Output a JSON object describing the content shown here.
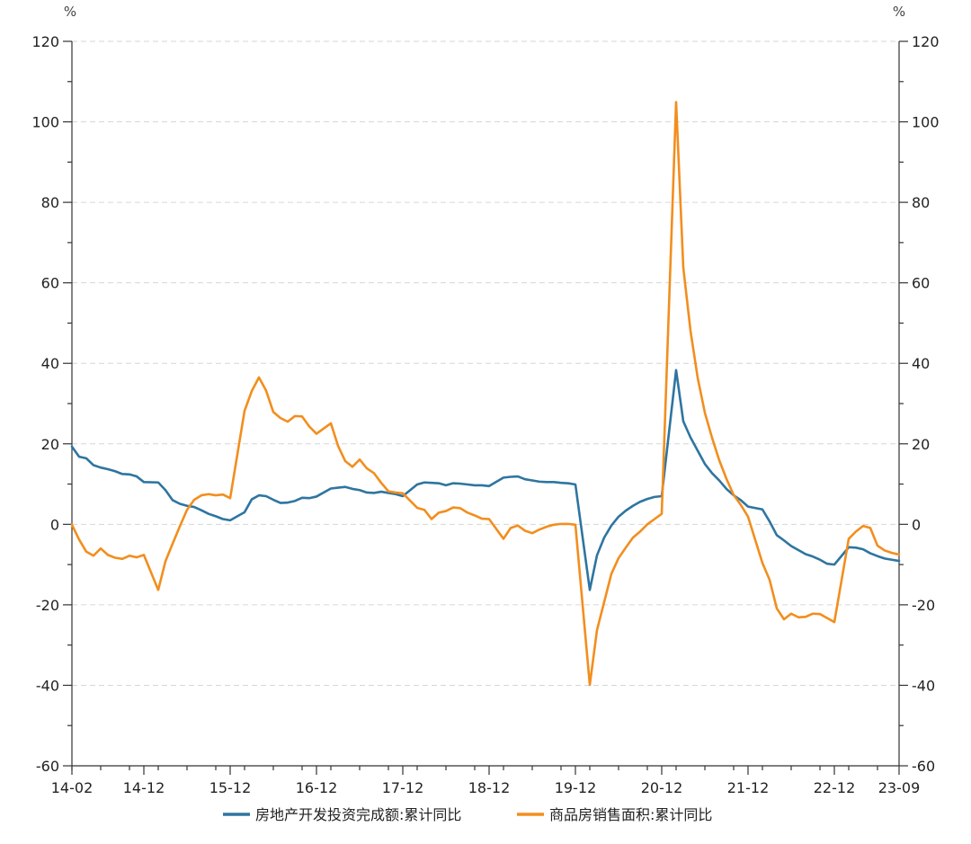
{
  "chart_data": {
    "type": "line",
    "title": "",
    "xlabel": "",
    "ylabel_left": "%",
    "ylabel_right": "%",
    "ylim": [
      -60,
      120
    ],
    "yticks": [
      -60,
      -40,
      -20,
      0,
      20,
      40,
      60,
      80,
      100,
      120
    ],
    "xlim": [
      "2014-02",
      "2023-09"
    ],
    "xticks": [
      "14-02",
      "14-12",
      "15-12",
      "16-12",
      "17-12",
      "18-12",
      "19-12",
      "20-12",
      "21-12",
      "22-12",
      "23-09"
    ],
    "grid": true,
    "legend_position": "bottom",
    "x": [
      "2014-02",
      "2014-03",
      "2014-04",
      "2014-05",
      "2014-06",
      "2014-07",
      "2014-08",
      "2014-09",
      "2014-10",
      "2014-11",
      "2014-12",
      "2015-02",
      "2015-03",
      "2015-04",
      "2015-05",
      "2015-06",
      "2015-07",
      "2015-08",
      "2015-09",
      "2015-10",
      "2015-11",
      "2015-12",
      "2016-02",
      "2016-03",
      "2016-04",
      "2016-05",
      "2016-06",
      "2016-07",
      "2016-08",
      "2016-09",
      "2016-10",
      "2016-11",
      "2016-12",
      "2017-02",
      "2017-03",
      "2017-04",
      "2017-05",
      "2017-06",
      "2017-07",
      "2017-08",
      "2017-09",
      "2017-10",
      "2017-11",
      "2017-12",
      "2018-02",
      "2018-03",
      "2018-04",
      "2018-05",
      "2018-06",
      "2018-07",
      "2018-08",
      "2018-09",
      "2018-10",
      "2018-11",
      "2018-12",
      "2019-02",
      "2019-03",
      "2019-04",
      "2019-05",
      "2019-06",
      "2019-07",
      "2019-08",
      "2019-09",
      "2019-10",
      "2019-11",
      "2019-12",
      "2020-02",
      "2020-03",
      "2020-04",
      "2020-05",
      "2020-06",
      "2020-07",
      "2020-08",
      "2020-09",
      "2020-10",
      "2020-11",
      "2020-12",
      "2021-02",
      "2021-03",
      "2021-04",
      "2021-05",
      "2021-06",
      "2021-07",
      "2021-08",
      "2021-09",
      "2021-10",
      "2021-11",
      "2021-12",
      "2022-02",
      "2022-03",
      "2022-04",
      "2022-05",
      "2022-06",
      "2022-07",
      "2022-08",
      "2022-09",
      "2022-10",
      "2022-11",
      "2022-12",
      "2023-02",
      "2023-03",
      "2023-04",
      "2023-05",
      "2023-06",
      "2023-07",
      "2023-08",
      "2023-09"
    ],
    "series": [
      {
        "name": "房地产开发投资完成额:累计同比",
        "color": "#2e75a0",
        "values": [
          19.3,
          16.8,
          16.4,
          14.7,
          14.1,
          13.7,
          13.2,
          12.5,
          12.4,
          11.9,
          10.5,
          10.4,
          8.5,
          6.0,
          5.1,
          4.6,
          4.3,
          3.5,
          2.6,
          2.0,
          1.3,
          1.0,
          3.0,
          6.2,
          7.2,
          7.0,
          6.1,
          5.3,
          5.4,
          5.8,
          6.6,
          6.5,
          6.9,
          8.9,
          9.1,
          9.3,
          8.8,
          8.5,
          7.9,
          7.8,
          8.1,
          7.8,
          7.5,
          7.0,
          9.9,
          10.4,
          10.3,
          10.2,
          9.7,
          10.2,
          10.1,
          9.9,
          9.7,
          9.7,
          9.5,
          11.6,
          11.8,
          11.9,
          11.2,
          10.9,
          10.6,
          10.5,
          10.5,
          10.3,
          10.2,
          9.9,
          -16.3,
          -7.7,
          -3.3,
          -0.3,
          1.9,
          3.4,
          4.6,
          5.6,
          6.3,
          6.8,
          7.0,
          38.3,
          25.6,
          21.6,
          18.3,
          15.0,
          12.7,
          10.9,
          8.8,
          7.2,
          6.0,
          4.4,
          3.7,
          0.7,
          -2.7,
          -4.0,
          -5.4,
          -6.4,
          -7.4,
          -8.0,
          -8.8,
          -9.8,
          -10.0,
          -5.7,
          -5.8,
          -6.2,
          -7.2,
          -7.9,
          -8.5,
          -8.8,
          -9.1
        ]
      },
      {
        "name": "商品房销售面积:累计同比",
        "color": "#f28e1e",
        "values": [
          -0.1,
          -3.8,
          -6.8,
          -7.8,
          -6.0,
          -7.6,
          -8.3,
          -8.6,
          -7.8,
          -8.2,
          -7.6,
          -16.3,
          -9.2,
          -4.8,
          -0.5,
          3.6,
          6.1,
          7.2,
          7.5,
          7.2,
          7.4,
          6.5,
          28.2,
          33.1,
          36.5,
          33.2,
          27.9,
          26.4,
          25.5,
          26.9,
          26.8,
          24.3,
          22.5,
          25.1,
          19.5,
          15.7,
          14.3,
          16.1,
          13.9,
          12.7,
          10.3,
          8.2,
          7.9,
          7.7,
          4.1,
          3.6,
          1.3,
          2.9,
          3.3,
          4.2,
          4.0,
          2.9,
          2.2,
          1.4,
          1.3,
          -3.6,
          -0.9,
          -0.3,
          -1.6,
          -2.2,
          -1.3,
          -0.6,
          -0.1,
          0.1,
          0.1,
          -0.1,
          -39.9,
          -26.3,
          -19.3,
          -12.3,
          -8.4,
          -5.8,
          -3.3,
          -1.8,
          0.0,
          1.3,
          2.6,
          104.9,
          63.8,
          48.1,
          36.4,
          27.7,
          21.5,
          15.9,
          11.3,
          7.3,
          4.8,
          1.9,
          -9.6,
          -13.8,
          -20.9,
          -23.6,
          -22.2,
          -23.1,
          -23.0,
          -22.2,
          -22.3,
          -23.3,
          -24.3,
          -3.6,
          -1.8,
          -0.4,
          -0.9,
          -5.3,
          -6.5,
          -7.1,
          -7.5
        ]
      }
    ]
  }
}
